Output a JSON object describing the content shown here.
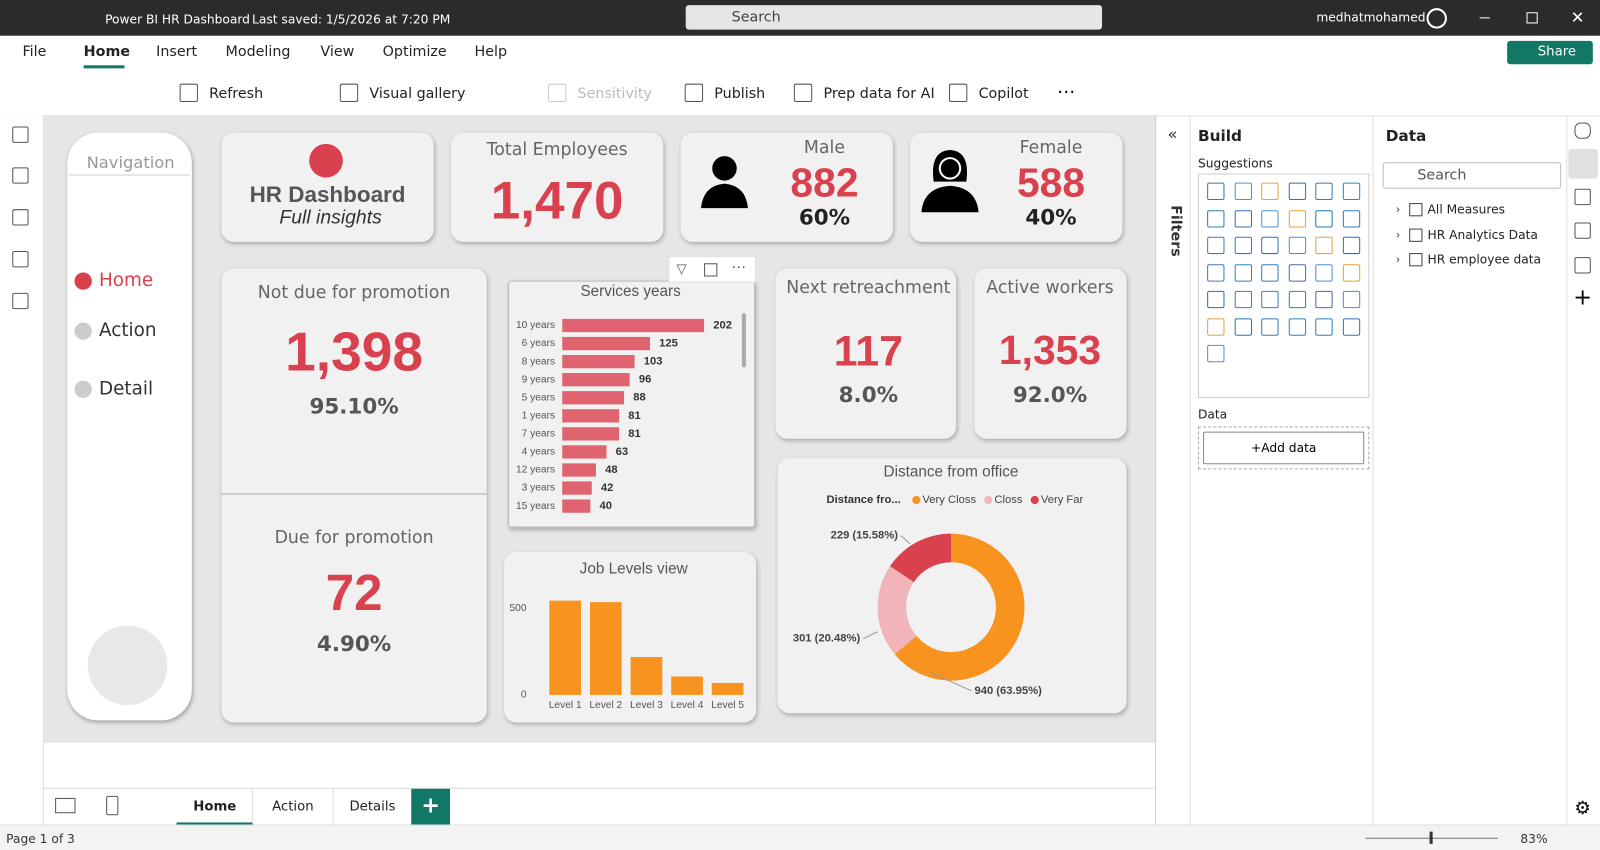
{
  "titlebar": {
    "title": "Power BI HR Dashboard",
    "saved": "Last saved: 1/5/2026 at 7:20 PM",
    "search": "Search",
    "user": "medhatmohamed"
  },
  "menu": [
    "File",
    "Home",
    "Insert",
    "Modeling",
    "View",
    "Optimize",
    "Help"
  ],
  "share": "Share",
  "ribbon": [
    "Refresh",
    "Visual gallery",
    "Sensitivity",
    "Publish",
    "Prep data for AI",
    "Copilot"
  ],
  "navigation": {
    "title": "Navigation",
    "items": [
      "Home",
      "Action",
      "Detail"
    ]
  },
  "header_card": {
    "title": "HR Dashboard",
    "subtitle": "Full insights"
  },
  "kpis": {
    "total_employees": {
      "label": "Total Employees",
      "value": "1,470"
    },
    "male": {
      "label": "Male",
      "value": "882",
      "pct": "60%"
    },
    "female": {
      "label": "Female",
      "value": "588",
      "pct": "40%"
    },
    "not_due": {
      "label": "Not due for promotion",
      "value": "1,398",
      "pct": "95.10%"
    },
    "due": {
      "label": "Due for promotion",
      "value": "72",
      "pct": "4.90%"
    },
    "retreachment": {
      "label": "Next retreachment",
      "value": "117",
      "pct": "8.0%"
    },
    "active": {
      "label": "Active workers",
      "value": "1,353",
      "pct": "92.0%"
    }
  },
  "chart_data": [
    {
      "type": "hbar",
      "title": "Services years",
      "categories": [
        "10 years",
        "6 years",
        "8 years",
        "9 years",
        "5 years",
        "1 years",
        "7 years",
        "4 years",
        "12 years",
        "3 years",
        "15 years"
      ],
      "values": [
        202,
        125,
        103,
        96,
        88,
        81,
        81,
        63,
        48,
        42,
        40
      ],
      "color": "#e0646f"
    },
    {
      "type": "bar",
      "title": "Job Levels view",
      "categories": [
        "Level 1",
        "Level 2",
        "Level 3",
        "Level 4",
        "Level 5"
      ],
      "values": [
        543,
        534,
        218,
        106,
        69
      ],
      "color": "#f7931e",
      "ylim": [
        0,
        570
      ],
      "yticks": [
        0,
        500
      ]
    },
    {
      "type": "donut",
      "title": "Distance from office",
      "legend_title": "Distance fro...",
      "categories": [
        "Very Closs",
        "Closs",
        "Very Far"
      ],
      "values": [
        940,
        301,
        229
      ],
      "value_labels": [
        "940 (63.95%)",
        "301 (20.48%)",
        "229 (15.58%)"
      ],
      "colors": [
        "#f7931e",
        "#f0b4b9",
        "#d9414e"
      ]
    }
  ],
  "filters": "Filters",
  "build": {
    "title": "Build",
    "suggestions": "Suggestions",
    "data": "Data",
    "add": "+Add data"
  },
  "data_pane": {
    "title": "Data",
    "search": "Search",
    "items": [
      "All Measures",
      "HR Analytics Data",
      "HR employee data"
    ]
  },
  "tabs": [
    "Home",
    "Action",
    "Details"
  ],
  "status": {
    "page": "Page 1 of 3",
    "zoom": "83%"
  }
}
